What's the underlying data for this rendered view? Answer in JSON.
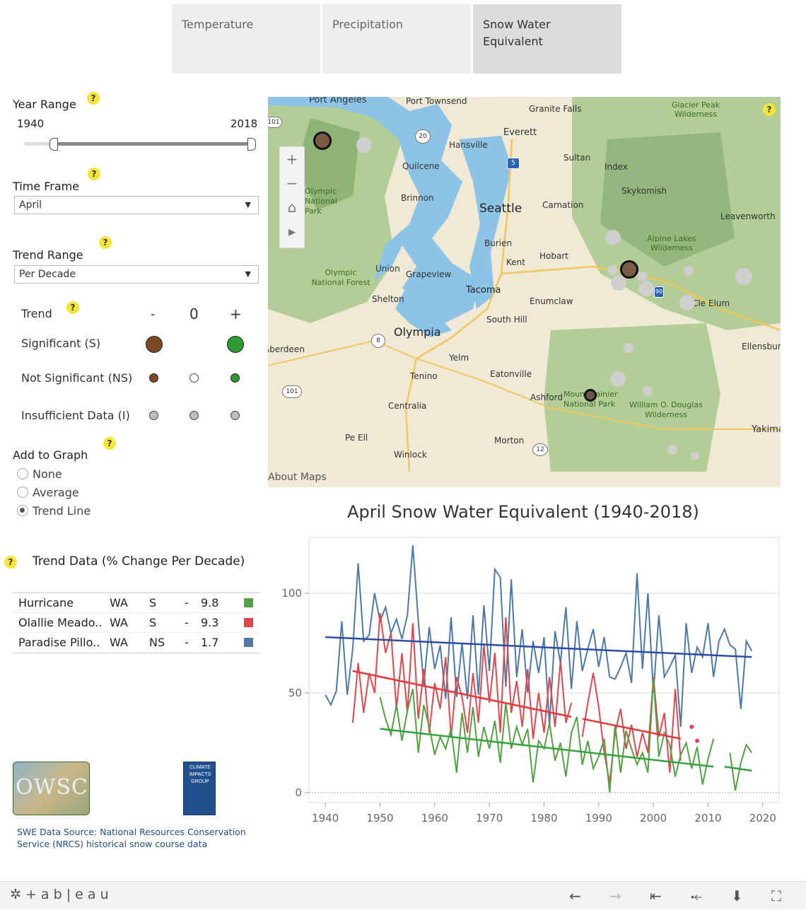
{
  "tabs": [
    {
      "label": "Temperature",
      "active": false
    },
    {
      "label": "Precipitation",
      "active": false
    },
    {
      "label": "Snow Water Equivalent",
      "active": true
    }
  ],
  "help_glyph": "?",
  "year_range": {
    "label": "Year Range",
    "min": "1940",
    "max": "2018"
  },
  "time_frame": {
    "label": "Time Frame",
    "value": "April"
  },
  "trend_range": {
    "label": "Trend Range",
    "value": "Per Decade"
  },
  "trend_legend": {
    "title": "Trend",
    "headers": [
      "-",
      "0",
      "+"
    ],
    "rows": [
      {
        "label": "Significant (S)"
      },
      {
        "label": "Not Significant (NS)"
      },
      {
        "label": "Insufficient Data (I)"
      }
    ],
    "colors": {
      "negative": "#7b4a24",
      "positive": "#2d9a33",
      "insufficient": "#bdbdbd"
    }
  },
  "add_to_graph": {
    "label": "Add to Graph",
    "options": [
      "None",
      "Average",
      "Trend Line"
    ],
    "selected": "Trend Line"
  },
  "trend_data": {
    "title": "Trend Data (% Change Per Decade)",
    "rows": [
      {
        "name": "Hurricane",
        "state": "WA",
        "sig": "S",
        "sign": "-",
        "value": "9.8",
        "color": "#54a044"
      },
      {
        "name": "Olallie Meado..",
        "state": "WA",
        "sig": "S",
        "sign": "-",
        "value": "9.3",
        "color": "#e0474c"
      },
      {
        "name": "Paradise Pillo..",
        "state": "WA",
        "sig": "NS",
        "sign": "-",
        "value": "1.7",
        "color": "#4e79a7"
      }
    ]
  },
  "logos": {
    "owsc": "OWSC",
    "cig": "CLIMATE IMPACTS GROUP"
  },
  "data_source": "SWE Data Source: National Resources Conservation Service (NRCS) historical snow course data",
  "map": {
    "about": "About Maps",
    "controls": [
      "+",
      "−",
      "⌂",
      "▸"
    ],
    "places": [
      {
        "name": "Port Angeles"
      },
      {
        "name": "Port Townsend"
      },
      {
        "name": "Granite Falls"
      },
      {
        "name": "Glacier Peak Wilderness"
      },
      {
        "name": "Everett"
      },
      {
        "name": "Hansville"
      },
      {
        "name": "Sultan"
      },
      {
        "name": "Index"
      },
      {
        "name": "Quilcene"
      },
      {
        "name": "Skykomish"
      },
      {
        "name": "Olympic National Park"
      },
      {
        "name": "Brinnon"
      },
      {
        "name": "Seattle"
      },
      {
        "name": "Carnation"
      },
      {
        "name": "Leavenworth"
      },
      {
        "name": "Burien"
      },
      {
        "name": "Alpine Lakes Wilderness"
      },
      {
        "name": "Hobart"
      },
      {
        "name": "Kent"
      },
      {
        "name": "Union"
      },
      {
        "name": "Grapeview"
      },
      {
        "name": "Olympic National Forest"
      },
      {
        "name": "Tacoma"
      },
      {
        "name": "Shelton"
      },
      {
        "name": "Enumclaw"
      },
      {
        "name": "Cle Elum"
      },
      {
        "name": "South Hill"
      },
      {
        "name": "Olympia"
      },
      {
        "name": "Aberdeen"
      },
      {
        "name": "Ellensburg"
      },
      {
        "name": "Yelm"
      },
      {
        "name": "Tenino"
      },
      {
        "name": "Eatonville"
      },
      {
        "name": "Ashford"
      },
      {
        "name": "Mount Rainier National Park"
      },
      {
        "name": "William O. Douglas Wilderness"
      },
      {
        "name": "Centralia"
      },
      {
        "name": "Pe Ell"
      },
      {
        "name": "Morton"
      },
      {
        "name": "Winlock"
      },
      {
        "name": "Yakima"
      }
    ],
    "shields": [
      "101",
      "20",
      "5",
      "8",
      "101",
      "12",
      "90"
    ]
  },
  "chart_data": {
    "type": "line",
    "title": "April Snow Water Equivalent (1940-2018)",
    "xlabel": "",
    "ylabel": "",
    "xlim": [
      1937,
      2023
    ],
    "ylim": [
      -5,
      128
    ],
    "xticks": [
      1940,
      1950,
      1960,
      1970,
      1980,
      1990,
      2000,
      2010,
      2020
    ],
    "yticks": [
      0,
      50,
      100
    ],
    "grid": true,
    "series": [
      {
        "color": "#4e79a7",
        "x": [
          1940,
          1941,
          1942,
          1943,
          1944,
          1945,
          1946,
          1947,
          1948,
          1949,
          1950,
          1951,
          1952,
          1953,
          1954,
          1955,
          1956,
          1957,
          1958,
          1959,
          1960,
          1961,
          1962,
          1963,
          1964,
          1965,
          1966,
          1967,
          1968,
          1969,
          1970,
          1971,
          1972,
          1973,
          1974,
          1975,
          1976,
          1977,
          1978,
          1979,
          1980,
          1981,
          1982,
          1983,
          1984,
          1985,
          1986,
          1987,
          1988,
          1989,
          1990,
          1991,
          1992,
          1993,
          1994,
          1995,
          1996,
          1997,
          1998,
          1999,
          2000,
          2001,
          2002,
          2003,
          2004,
          2005,
          2006,
          2007,
          2008,
          2009,
          2010,
          2011,
          2012,
          2013,
          2014,
          2015,
          2016,
          2017,
          2018
        ],
        "y": [
          49,
          44,
          51,
          86,
          49,
          72,
          115,
          76,
          79,
          100,
          86,
          93,
          80,
          87,
          77,
          89,
          124,
          86,
          54,
          83,
          62,
          74,
          47,
          88,
          48,
          75,
          47,
          89,
          49,
          94,
          61,
          112,
          108,
          53,
          107,
          58,
          82,
          50,
          76,
          60,
          78,
          34,
          81,
          65,
          93,
          52,
          86,
          61,
          72,
          82,
          63,
          78,
          58,
          57,
          63,
          70,
          55,
          110,
          62,
          100,
          50,
          89,
          58,
          63,
          69,
          33,
          85,
          60,
          73,
          68,
          85,
          58,
          76,
          82,
          74,
          72,
          42,
          76,
          71
        ]
      },
      {
        "color": "#e0474c",
        "x": [
          1945,
          1946,
          1947,
          1948,
          1949,
          1950,
          1951,
          1952,
          1953,
          1954,
          1955,
          1956,
          1957,
          1958,
          1959,
          1960,
          1961,
          1962,
          1963,
          1964,
          1965,
          1966,
          1967,
          1968,
          1969,
          1970,
          1971,
          1972,
          1973,
          1974,
          1975,
          1976,
          1977,
          1978,
          1979,
          1980,
          1981,
          1982,
          1983,
          1984,
          1985
        ],
        "y": [
          35,
          65,
          40,
          60,
          50,
          90,
          70,
          80,
          42,
          70,
          40,
          85,
          37,
          62,
          30,
          55,
          42,
          68,
          28,
          58,
          48,
          30,
          60,
          35,
          74,
          45,
          70,
          30,
          88,
          40,
          56,
          33,
          62,
          27,
          50,
          30,
          58,
          33,
          66,
          35,
          45
        ]
      },
      {
        "color": "#e0474c",
        "x": [
          1987,
          1988,
          1989,
          1990,
          1991,
          1992,
          1993,
          1994,
          1995,
          1996,
          1997,
          1998,
          1999,
          2000,
          2001,
          2002,
          2003,
          2004,
          2005
        ],
        "y": [
          28,
          45,
          60,
          43,
          20,
          5,
          30,
          42,
          22,
          34,
          18,
          30,
          20,
          58,
          28,
          40,
          10,
          52,
          16
        ]
      },
      {
        "color": "#e0474c",
        "x": [
          2007,
          2008
        ],
        "y": [
          33,
          26
        ],
        "markers": true
      },
      {
        "color": "#54a044",
        "x": [
          1950,
          1951,
          1952,
          1953,
          1954,
          1955,
          1956,
          1957,
          1958,
          1959,
          1960,
          1961,
          1962,
          1963,
          1964,
          1965,
          1966,
          1967,
          1968,
          1969,
          1970,
          1971,
          1972,
          1973,
          1974,
          1975,
          1976,
          1977,
          1978,
          1979,
          1980,
          1981,
          1982,
          1983,
          1984,
          1985,
          1986,
          1987,
          1988,
          1989,
          1990,
          1991,
          1992,
          1993,
          1994,
          1995,
          1996,
          1997,
          1998,
          1999,
          2000,
          2001,
          2002,
          2003,
          2004,
          2005,
          2006,
          2007,
          2008,
          2009,
          2010,
          2011
        ],
        "y": [
          48,
          37,
          29,
          44,
          26,
          41,
          52,
          20,
          44,
          33,
          19,
          28,
          22,
          32,
          10,
          40,
          20,
          43,
          18,
          33,
          22,
          36,
          15,
          45,
          22,
          33,
          24,
          32,
          5,
          26,
          22,
          35,
          16,
          25,
          8,
          30,
          38,
          14,
          26,
          12,
          18,
          27,
          0,
          34,
          10,
          31,
          22,
          14,
          20,
          10,
          57,
          18,
          30,
          24,
          8,
          19,
          25,
          12,
          23,
          4,
          17,
          27
        ]
      },
      {
        "color": "#54a044",
        "x": [
          2014,
          2015,
          2016,
          2017,
          2018
        ],
        "y": [
          20,
          1,
          15,
          24,
          20
        ]
      }
    ],
    "trend_lines": [
      {
        "color": "#2a4ca6",
        "x": [
          1940,
          2018
        ],
        "y": [
          78,
          68
        ]
      },
      {
        "color": "#e23a3c",
        "x": [
          1945,
          1985
        ],
        "y": [
          61,
          38
        ]
      },
      {
        "color": "#e23a3c",
        "x": [
          1987,
          2005
        ],
        "y": [
          37,
          27
        ]
      },
      {
        "color": "#32a33a",
        "x": [
          1950,
          2011
        ],
        "y": [
          32,
          13
        ]
      },
      {
        "color": "#32a33a",
        "x": [
          2013,
          2018
        ],
        "y": [
          13,
          11
        ]
      }
    ]
  },
  "footer": {
    "brand": "+ a b | e a u",
    "nav": [
      "←",
      "→",
      "⇤",
      "⤝",
      "⬇",
      "⛶"
    ]
  }
}
